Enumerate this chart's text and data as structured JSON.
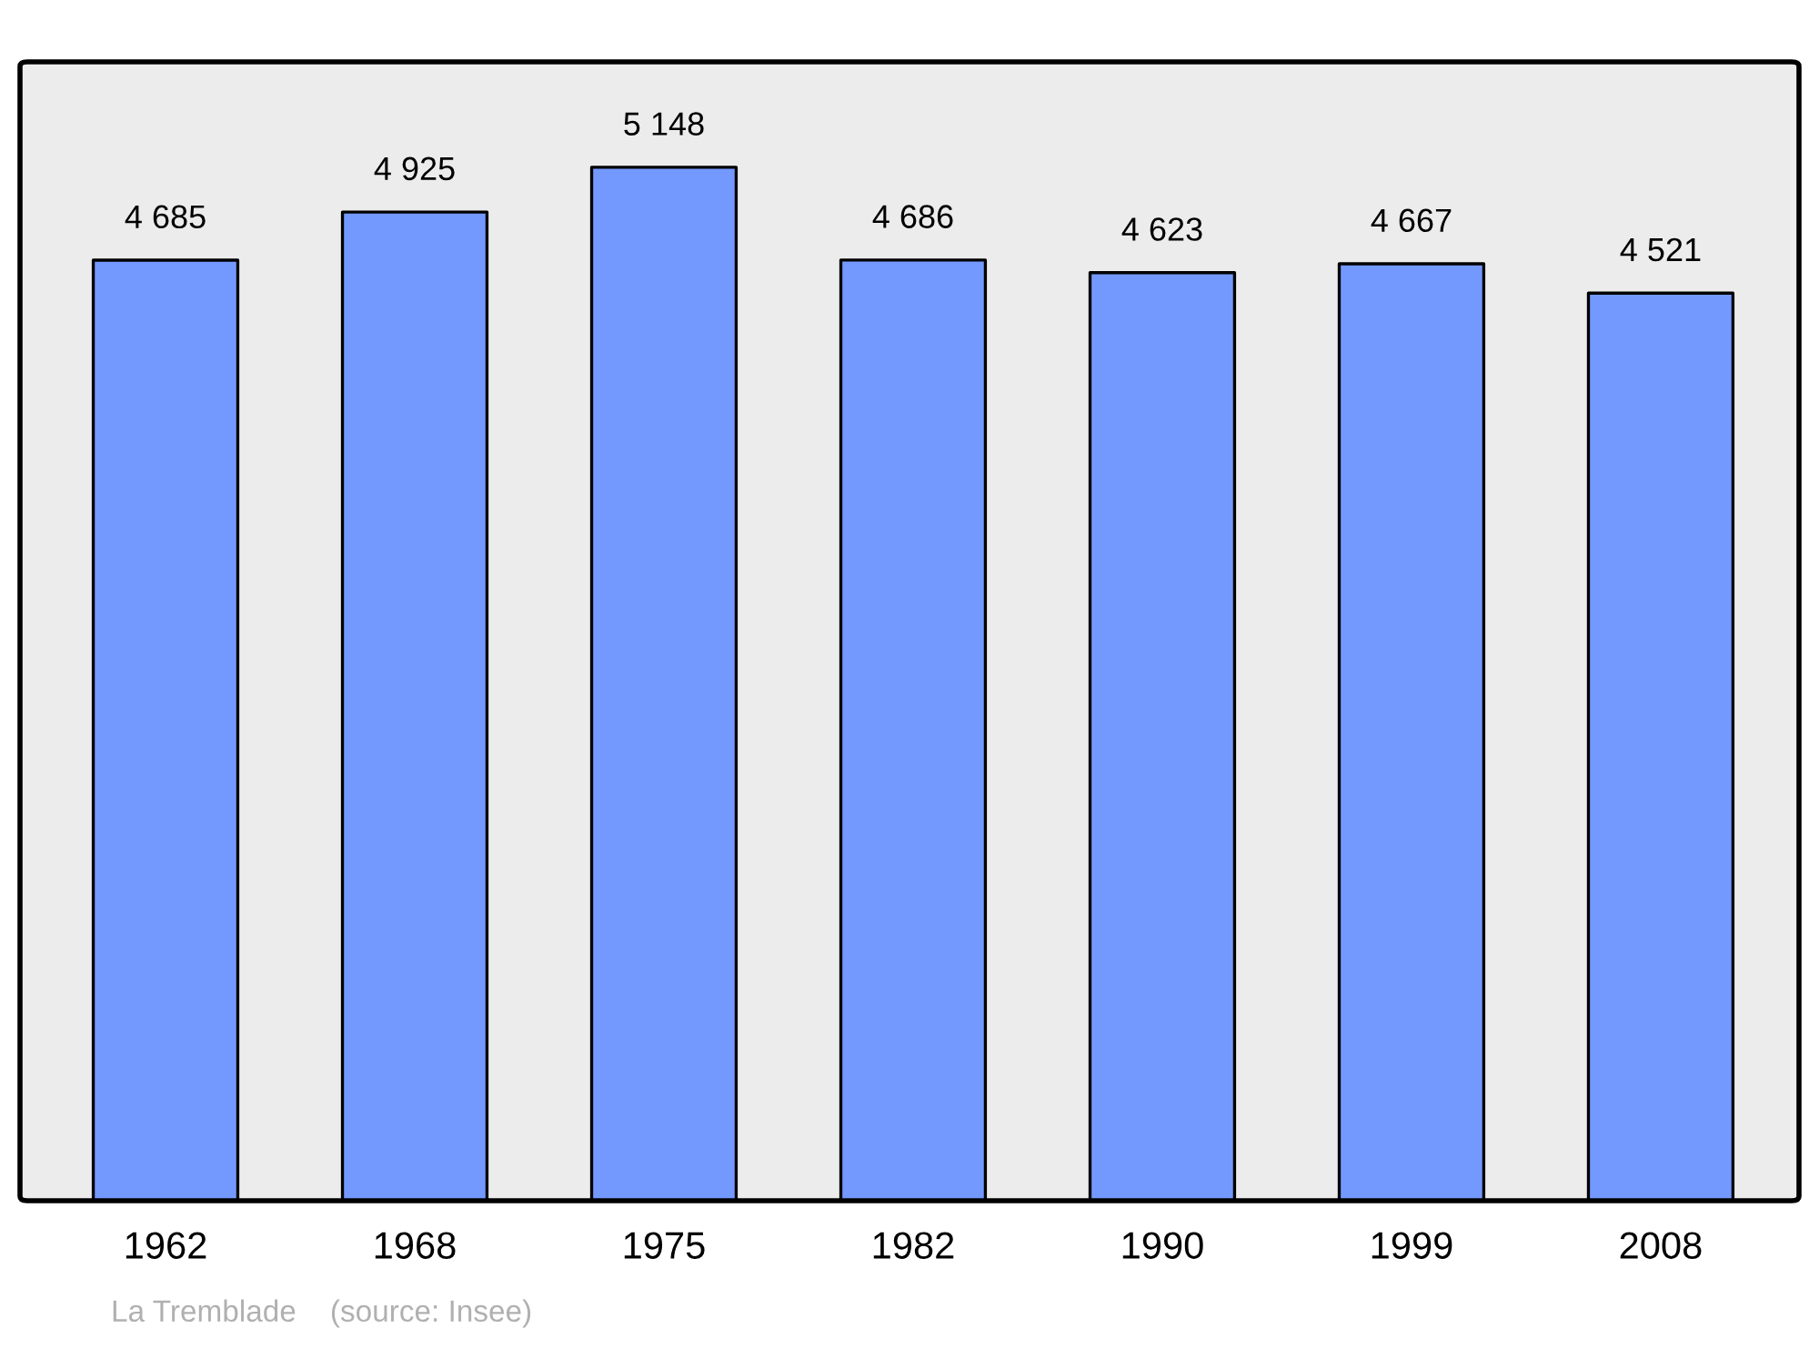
{
  "chart_data": {
    "type": "bar",
    "categories": [
      "1962",
      "1968",
      "1975",
      "1982",
      "1990",
      "1999",
      "2008"
    ],
    "values": [
      4685,
      4925,
      5148,
      4686,
      4623,
      4667,
      4521
    ],
    "value_labels": [
      "4 685",
      "4 925",
      "5 148",
      "4 686",
      "4 623",
      "4 667",
      "4 521"
    ],
    "color": "#7399ff",
    "grid": false,
    "legend": false,
    "annotations": [
      "La Tremblade    (source: Insee)"
    ]
  }
}
